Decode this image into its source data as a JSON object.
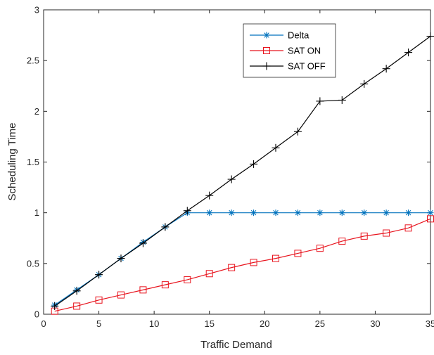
{
  "chart_data": {
    "type": "line",
    "xlabel": "Traffic Demand",
    "ylabel": "Scheduling Time",
    "xlim": [
      0,
      35
    ],
    "ylim": [
      0,
      3
    ],
    "xticks": [
      0,
      5,
      10,
      15,
      20,
      25,
      30,
      35
    ],
    "yticks": [
      0,
      0.5,
      1,
      1.5,
      2,
      2.5,
      3
    ],
    "xtick_labels": [
      "0",
      "5",
      "10",
      "15",
      "20",
      "25",
      "30",
      "35"
    ],
    "ytick_labels": [
      "0",
      "0.5",
      "1",
      "1.5",
      "2",
      "2.5",
      "3"
    ],
    "grid": false,
    "legend_position": "top-right",
    "x": [
      1,
      3,
      5,
      7,
      9,
      11,
      13,
      15,
      17,
      19,
      21,
      23,
      25,
      27,
      29,
      31,
      33,
      35
    ],
    "series": [
      {
        "name": "Delta",
        "color": "#0072BD",
        "marker": "asterisk",
        "values": [
          0.09,
          0.24,
          0.39,
          0.55,
          0.71,
          0.86,
          1.0,
          1.0,
          1.0,
          1.0,
          1.0,
          1.0,
          1.0,
          1.0,
          1.0,
          1.0,
          1.0,
          1.0
        ]
      },
      {
        "name": "SAT ON",
        "color": "#E8141E",
        "marker": "square",
        "values": [
          0.03,
          0.08,
          0.14,
          0.19,
          0.24,
          0.29,
          0.34,
          0.4,
          0.46,
          0.51,
          0.55,
          0.6,
          0.65,
          0.72,
          0.77,
          0.8,
          0.85,
          0.94
        ]
      },
      {
        "name": "SAT OFF",
        "color": "#000000",
        "marker": "plus",
        "values": [
          0.08,
          0.23,
          0.39,
          0.55,
          0.7,
          0.86,
          1.02,
          1.17,
          1.33,
          1.48,
          1.64,
          1.8,
          2.1,
          2.11,
          2.27,
          2.42,
          2.58,
          2.74
        ]
      }
    ]
  }
}
